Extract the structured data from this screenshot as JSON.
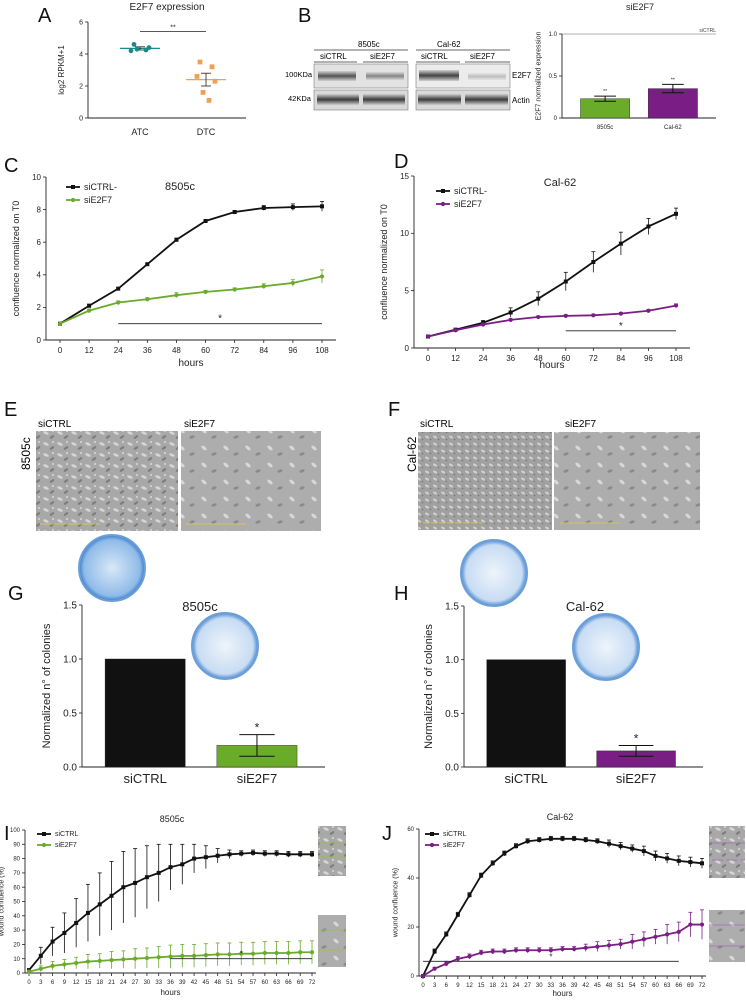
{
  "colors": {
    "black": "#111111",
    "green": "#6aab2a",
    "purple": "#7a1e86",
    "teal": "#1b8a8c",
    "orange": "#f0a150",
    "dish": "#8ab6e6",
    "micro": "#a9a9a9"
  },
  "panels": {
    "A": "A",
    "B": "B",
    "C": "C",
    "D": "D",
    "E": "E",
    "F": "F",
    "G": "G",
    "H": "H",
    "I": "I",
    "J": "J"
  },
  "chart_data": [
    {
      "id": "A",
      "type": "scatter",
      "title": "E2F7 expression",
      "ylabel": "log2 RPKM+1",
      "categories": [
        "ATC",
        "DTC"
      ],
      "ylim": [
        0,
        6
      ],
      "yticks": [
        "0",
        "2",
        "4",
        "6"
      ],
      "sig": "**",
      "series": [
        {
          "name": "ATC",
          "color": "teal",
          "values": [
            4.6,
            4.25,
            4.2,
            4.4,
            4.3
          ],
          "mean": 4.35,
          "sem": 0.1
        },
        {
          "name": "DTC",
          "color": "orange",
          "values": [
            3.5,
            3.2,
            2.6,
            2.3,
            1.6,
            1.1
          ],
          "mean": 2.4,
          "sem": 0.4
        }
      ]
    },
    {
      "id": "B_bar",
      "type": "bar",
      "title": "siE2F7",
      "ylabel": "E2F7 normalized expression",
      "categories": [
        "8505c",
        "Cal-62"
      ],
      "values": [
        0.23,
        0.35
      ],
      "errors": [
        0.03,
        0.05
      ],
      "ylim": [
        0,
        1.0
      ],
      "yticks": [
        "0",
        "0.5",
        "1.0"
      ],
      "refline": 1.0,
      "reflabel": "siCTRL",
      "sig": [
        "**",
        "**"
      ],
      "colors": [
        "green",
        "purple"
      ]
    },
    {
      "id": "C",
      "type": "line",
      "title": "8505c",
      "xlabel": "hours",
      "ylabel": "confluence normalized on T0",
      "x": [
        0,
        12,
        24,
        36,
        48,
        60,
        72,
        84,
        96,
        108
      ],
      "xticks": [
        "0",
        "12",
        "24",
        "36",
        "48",
        "60",
        "72",
        "84",
        "96",
        "108"
      ],
      "ylim": [
        0,
        10
      ],
      "yticks": [
        "0",
        "2",
        "4",
        "6",
        "8",
        "10"
      ],
      "sig": "*",
      "sigrange": [
        24,
        108
      ],
      "series": [
        {
          "name": "siCTRL-",
          "color": "black",
          "values": [
            1,
            2.1,
            3.15,
            4.65,
            6.15,
            7.3,
            7.85,
            8.1,
            8.15,
            8.2
          ],
          "err": [
            0,
            0.1,
            0.05,
            0.05,
            0.1,
            0.1,
            0.1,
            0.15,
            0.2,
            0.3
          ]
        },
        {
          "name": "siE2F7",
          "color": "green",
          "values": [
            1,
            1.8,
            2.3,
            2.5,
            2.75,
            2.95,
            3.1,
            3.3,
            3.5,
            3.9
          ],
          "err": [
            0,
            0.1,
            0.1,
            0.1,
            0.15,
            0.1,
            0.1,
            0.15,
            0.2,
            0.4
          ]
        }
      ]
    },
    {
      "id": "D",
      "type": "line",
      "title": "Cal-62",
      "xlabel": "hours",
      "ylabel": "confluence normalized on T0",
      "x": [
        0,
        12,
        24,
        36,
        48,
        60,
        72,
        84,
        96,
        108
      ],
      "xticks": [
        "0",
        "12",
        "24",
        "36",
        "48",
        "60",
        "72",
        "84",
        "96",
        "108"
      ],
      "ylim": [
        0,
        15
      ],
      "yticks": [
        "0",
        "5",
        "10",
        "15"
      ],
      "sig": "*",
      "sigrange": [
        60,
        108
      ],
      "series": [
        {
          "name": "siCTRL-",
          "color": "black",
          "values": [
            1,
            1.6,
            2.2,
            3.1,
            4.3,
            5.8,
            7.5,
            9.1,
            10.6,
            11.7
          ],
          "err": [
            0,
            0.1,
            0.2,
            0.4,
            0.6,
            0.8,
            0.9,
            1.0,
            0.7,
            0.5
          ]
        },
        {
          "name": "siE2F7",
          "color": "purple",
          "values": [
            1,
            1.55,
            2.05,
            2.45,
            2.7,
            2.8,
            2.85,
            3.0,
            3.25,
            3.7
          ],
          "err": [
            0,
            0.05,
            0.1,
            0.1,
            0.1,
            0.1,
            0.1,
            0.1,
            0.1,
            0.15
          ]
        }
      ]
    },
    {
      "id": "G",
      "type": "bar",
      "title": "8505c",
      "ylabel": "Normalized n° of colonies",
      "categories": [
        "siCTRL",
        "siE2F7"
      ],
      "values": [
        1.0,
        0.2
      ],
      "errors": [
        0,
        0.1
      ],
      "ylim": [
        0,
        1.5
      ],
      "yticks": [
        "0.0",
        "0.5",
        "1.0",
        "1.5"
      ],
      "sig": [
        "",
        "*"
      ],
      "colors": [
        "black",
        "green"
      ]
    },
    {
      "id": "H",
      "type": "bar",
      "title": "Cal-62",
      "ylabel": "Normalized n° of colonies",
      "categories": [
        "siCTRL",
        "siE2F7"
      ],
      "values": [
        1.0,
        0.15
      ],
      "errors": [
        0,
        0.05
      ],
      "ylim": [
        0,
        1.5
      ],
      "yticks": [
        "0.0",
        "0.5",
        "1.0",
        "1.5"
      ],
      "sig": [
        "",
        "*"
      ],
      "colors": [
        "black",
        "purple"
      ]
    },
    {
      "id": "I",
      "type": "line",
      "title": "8505c",
      "xlabel": "hours",
      "ylabel": "wound confluence (%)",
      "x": [
        0,
        3,
        6,
        9,
        12,
        15,
        18,
        21,
        24,
        27,
        30,
        33,
        36,
        39,
        42,
        45,
        48,
        51,
        54,
        57,
        60,
        63,
        66,
        69,
        72
      ],
      "xticks": [
        "0",
        "3",
        "6",
        "9",
        "12",
        "15",
        "18",
        "21",
        "24",
        "27",
        "30",
        "33",
        "36",
        "39",
        "42",
        "45",
        "48",
        "51",
        "54",
        "57",
        "60",
        "63",
        "66",
        "69",
        "72"
      ],
      "ylim": [
        0,
        100
      ],
      "yticks": [
        "0",
        "10",
        "20",
        "30",
        "40",
        "50",
        "60",
        "70",
        "80",
        "90",
        "100"
      ],
      "sig": "*",
      "sigrange": [
        36,
        72
      ],
      "series": [
        {
          "name": "siCTRL",
          "color": "black",
          "values": [
            2,
            12,
            22,
            28,
            35,
            42,
            48,
            54,
            60,
            63,
            67,
            70,
            74,
            76,
            80,
            81,
            82,
            83,
            83.5,
            84,
            83.5,
            83.5,
            83,
            83,
            83
          ],
          "err": [
            1,
            6,
            10,
            14,
            17,
            20,
            22,
            24,
            25,
            24,
            22,
            20,
            16,
            14,
            10,
            8,
            5,
            3,
            2,
            2,
            2,
            2,
            2,
            2,
            2
          ]
        },
        {
          "name": "siE2F7",
          "color": "green",
          "values": [
            1,
            3,
            5,
            6,
            7,
            8,
            8.5,
            9,
            9.5,
            10,
            10.5,
            11,
            11.5,
            12,
            12,
            12.5,
            13,
            13,
            13.5,
            13.5,
            14,
            14,
            14,
            14.5,
            14.5
          ],
          "err": [
            1,
            2,
            3,
            3.5,
            4,
            5,
            5,
            6,
            6,
            7,
            7,
            7.5,
            8,
            8,
            8,
            8,
            8,
            8,
            8,
            8,
            8,
            8,
            8,
            8,
            8
          ]
        }
      ]
    },
    {
      "id": "J",
      "type": "line",
      "title": "Cal-62",
      "xlabel": "hours",
      "ylabel": "wound confluence (%)",
      "x": [
        0,
        3,
        6,
        9,
        12,
        15,
        18,
        21,
        24,
        27,
        30,
        33,
        36,
        39,
        42,
        45,
        48,
        51,
        54,
        57,
        60,
        63,
        66,
        69,
        72
      ],
      "xticks": [
        "0",
        "3",
        "6",
        "9",
        "12",
        "15",
        "18",
        "21",
        "24",
        "27",
        "30",
        "33",
        "36",
        "39",
        "42",
        "45",
        "48",
        "51",
        "54",
        "57",
        "60",
        "63",
        "66",
        "69",
        "72"
      ],
      "ylim": [
        0,
        60
      ],
      "yticks": [
        "0",
        "20",
        "40",
        "60"
      ],
      "sig": "*",
      "sigrange": [
        0,
        66
      ],
      "series": [
        {
          "name": "siCTRL",
          "color": "black",
          "values": [
            0,
            10,
            17,
            25,
            33,
            41,
            46,
            50,
            53,
            55,
            55.5,
            56,
            56,
            56,
            55.5,
            55,
            54,
            53,
            52,
            51,
            49,
            48,
            47,
            46.5,
            46
          ],
          "err": [
            0,
            1,
            1,
            1,
            1,
            1,
            1,
            1,
            1,
            1,
            1,
            1,
            1,
            1,
            1,
            1,
            1.5,
            1.5,
            1.5,
            2,
            2,
            2,
            2,
            2,
            2
          ]
        },
        {
          "name": "siE2F7",
          "color": "purple",
          "values": [
            0,
            3,
            5,
            7,
            8,
            9.5,
            10,
            10,
            10.5,
            10.5,
            10.5,
            10.5,
            11,
            11,
            11.5,
            12,
            12.5,
            13,
            14,
            15,
            16,
            17,
            18,
            21,
            21
          ],
          "err": [
            0,
            0.5,
            1,
            1,
            1,
            1,
            1,
            1,
            1,
            1,
            1,
            1,
            1,
            1,
            1.5,
            2,
            2,
            2,
            3,
            3,
            3,
            4,
            4,
            5,
            6
          ]
        }
      ]
    }
  ],
  "blot": {
    "cell_lines": [
      "8505c",
      "Cal-62"
    ],
    "lanes": [
      "siCTRL",
      "siE2F7"
    ],
    "sizes": [
      "100KDa",
      "42KDa"
    ],
    "proteins": [
      "E2F7",
      "Actin"
    ]
  },
  "micrographs": {
    "E": {
      "row": "8505c",
      "labels": [
        "siCTRL",
        "siE2F7"
      ]
    },
    "F": {
      "row": "Cal-62",
      "labels": [
        "siCTRL",
        "siE2F7"
      ]
    }
  }
}
